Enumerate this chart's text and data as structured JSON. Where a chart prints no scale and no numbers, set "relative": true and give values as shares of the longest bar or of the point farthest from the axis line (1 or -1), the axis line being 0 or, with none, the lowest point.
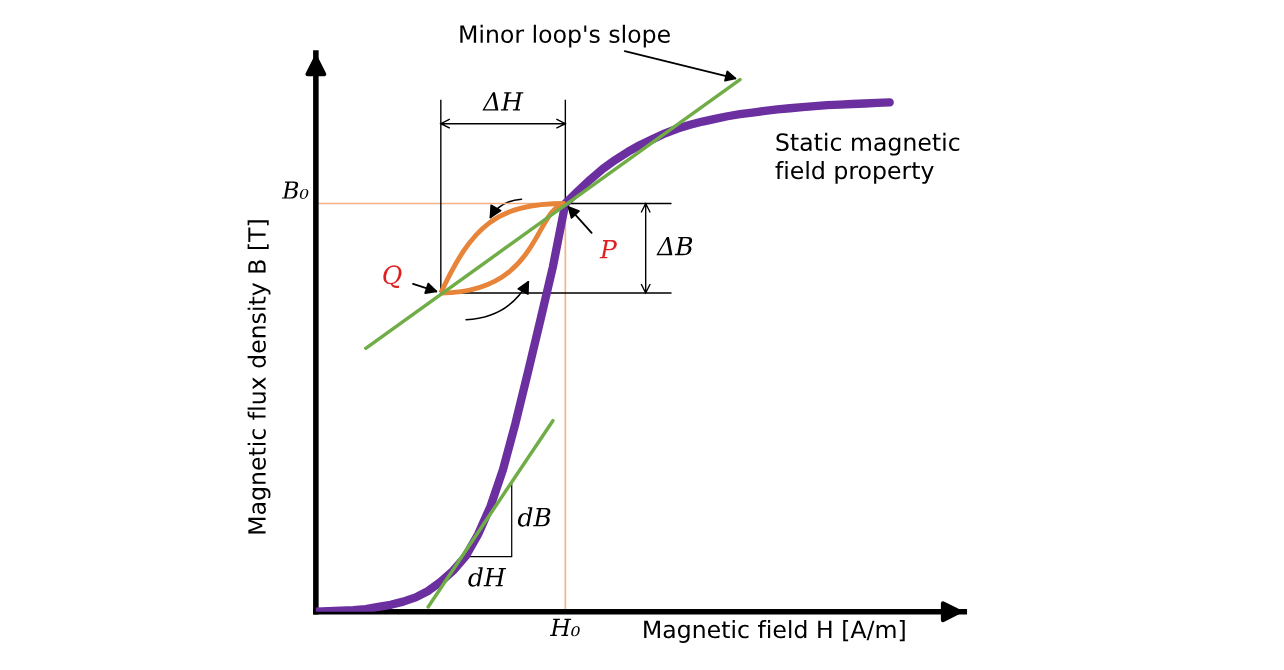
{
  "chart_data": {
    "type": "line",
    "relative": true,
    "xlabel": "Magnetic field H [A/m]",
    "ylabel": "Magnetic flux density B [T]",
    "categories": [
      null,
      null,
      null,
      null,
      null,
      null,
      null,
      null,
      null,
      null,
      null,
      null,
      null,
      null,
      null,
      null,
      null,
      null,
      null,
      null,
      null,
      null,
      null,
      null,
      null,
      null,
      null,
      null,
      null,
      null,
      null,
      null,
      null,
      null,
      null,
      null,
      null,
      null,
      null,
      null,
      null,
      null,
      null,
      null,
      null,
      null,
      null
    ],
    "marker": "none",
    "line_style": "solid",
    "series": [
      {
        "color": "#6b2fa0",
        "values": [
          0,
          0.001,
          0.002,
          0.003,
          0.005,
          0.009,
          0.013,
          0.019,
          0.027,
          0.039,
          0.056,
          0.077,
          0.104,
          0.145,
          0.198,
          0.267,
          0.354,
          0.45,
          0.548,
          0.648,
          0.767,
          0.79,
          0.812,
          0.832,
          0.849,
          0.864,
          0.877,
          0.888,
          0.899,
          0.908,
          0.915,
          0.921,
          0.926,
          0.931,
          0.935,
          0.938,
          0.941,
          0.944,
          0.946,
          0.948,
          0.95,
          0.952,
          0.953,
          0.954,
          0.955,
          0.956,
          0.957
        ]
      },
      {
        "color": "#70ad47",
        "values": [
          null,
          null,
          null,
          null,
          0.495,
          null,
          null,
          null,
          null,
          null,
          null,
          null,
          null,
          null,
          null,
          null,
          null,
          null,
          null,
          null,
          null,
          null,
          null,
          null,
          null,
          null,
          null,
          null,
          null,
          null,
          null,
          null,
          null,
          null,
          1.0,
          null,
          null,
          null,
          null,
          null,
          null,
          null,
          null,
          null,
          null,
          null,
          null
        ]
      },
      {
        "color": "#70ad47",
        "values": [
          null,
          null,
          null,
          null,
          null,
          null,
          null,
          null,
          null,
          0.009,
          null,
          null,
          null,
          null,
          null,
          null,
          null,
          null,
          null,
          0.359,
          null,
          null,
          null,
          null,
          null,
          null,
          null,
          null,
          null,
          null,
          null,
          null,
          null,
          null,
          null,
          null,
          null,
          null,
          null,
          null,
          null,
          null,
          null,
          null,
          null,
          null,
          null
        ]
      }
    ],
    "ref_lines": [
      {
        "axis": "y",
        "value": 0.767,
        "label": "B₀",
        "color": "#f4b183"
      }
    ],
    "annotations": [
      "Minor loop's slope",
      "Static magnetic\nfield property",
      "P",
      "Q",
      "ΔH",
      "ΔB",
      "dB",
      "dH",
      "H₀"
    ]
  }
}
